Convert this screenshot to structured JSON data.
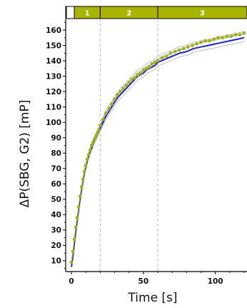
{
  "chart_data": {
    "type": "line",
    "title": "",
    "xlabel": "Time [s]",
    "ylabel": "ΔP(SBG, G2) [mP]",
    "xlim": [
      -4,
      122
    ],
    "ylim": [
      3,
      167
    ],
    "x_ticks": [
      0,
      50,
      100
    ],
    "y_ticks": [
      10,
      20,
      30,
      40,
      50,
      60,
      70,
      80,
      90,
      100,
      110,
      120,
      130,
      140,
      150,
      160
    ],
    "grid": false,
    "legend": "none",
    "phase_boundaries": [
      20,
      60
    ],
    "phases": [
      {
        "label": "1",
        "start": 2,
        "end": 20
      },
      {
        "label": "2",
        "start": 20,
        "end": 60
      },
      {
        "label": "3",
        "start": 60,
        "end": 122
      }
    ],
    "colors": {
      "phase_band": "#a8b400",
      "fit_line": "#1a23c8",
      "points": "#a0b020",
      "replicates": "#b8b8c8",
      "dashed": "#bbbbbb"
    },
    "series": [
      {
        "style": "points",
        "x": [
          0,
          1,
          2,
          3,
          4,
          5,
          6,
          7,
          8,
          9,
          10,
          11,
          12,
          13,
          14,
          15,
          16,
          17,
          18,
          19,
          20,
          22,
          24,
          26,
          28,
          30,
          32,
          34,
          36,
          38,
          40,
          42,
          44,
          46,
          48,
          50,
          52,
          54,
          56,
          58,
          60,
          63,
          66,
          69,
          72,
          75,
          78,
          81,
          84,
          87,
          90,
          93,
          96,
          99,
          102,
          105,
          108,
          111,
          114,
          117,
          120
        ],
        "y": [
          9,
          16,
          24,
          32,
          38,
          45,
          52,
          58,
          63,
          68,
          72,
          76,
          79,
          82,
          85,
          87,
          89,
          91,
          93,
          95,
          98,
          102,
          106,
          109,
          112,
          115,
          118,
          120,
          122,
          124,
          126,
          128,
          129,
          131,
          132,
          134,
          135,
          136,
          138,
          139,
          140,
          142,
          143,
          145,
          146,
          147,
          148,
          149,
          150,
          151,
          152,
          153,
          153,
          154,
          155,
          155,
          156,
          156,
          157,
          157,
          158
        ]
      },
      {
        "style": "line",
        "x": [
          0,
          1,
          2,
          3,
          4,
          5,
          6,
          7,
          8,
          9,
          10,
          11,
          12,
          13,
          14,
          15,
          16,
          17,
          18,
          19,
          20,
          22,
          24,
          26,
          28,
          30,
          32,
          34,
          36,
          38,
          40,
          42,
          44,
          46,
          48,
          50,
          52,
          54,
          56,
          58,
          60,
          65,
          70,
          75,
          80,
          85,
          90,
          95,
          100,
          105,
          110,
          115,
          120
        ],
        "y": [
          6,
          13,
          21,
          29,
          36,
          43,
          50,
          56,
          62,
          67,
          71,
          75,
          78,
          81,
          83,
          86,
          88,
          90,
          92,
          94,
          96,
          100,
          104,
          107,
          110,
          113,
          116,
          118,
          120,
          122,
          124,
          126,
          128,
          130,
          131,
          132,
          134,
          135,
          136,
          137,
          139,
          141,
          143,
          145,
          146,
          148,
          149,
          150,
          151,
          152,
          153,
          154,
          155
        ]
      }
    ]
  }
}
